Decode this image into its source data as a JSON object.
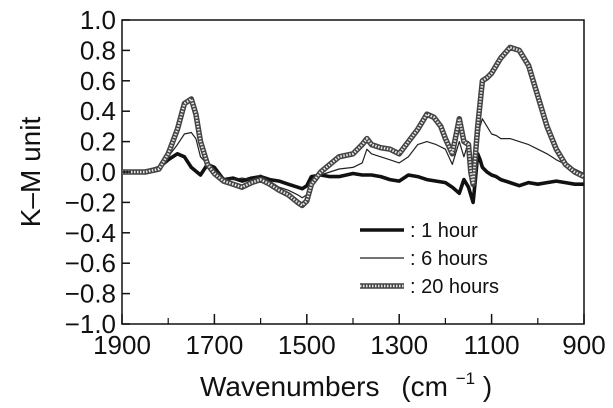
{
  "chart_data": {
    "type": "line",
    "xlabel": "Wavenumbers",
    "xlabel_unit_base": "(cm",
    "xlabel_unit_sup": "−1",
    "xlabel_unit_close": ")",
    "ylabel": "K–M unit",
    "xlim": [
      1900,
      900
    ],
    "ylim": [
      -1.0,
      1.0
    ],
    "x_ticks": [
      1900,
      1700,
      1500,
      1300,
      1100,
      900
    ],
    "x_tick_labels": [
      "1900",
      "1700",
      "1500",
      "1300",
      "1100",
      "900"
    ],
    "y_ticks": [
      1.0,
      0.8,
      0.6,
      0.4,
      0.2,
      0.0,
      -0.2,
      -0.4,
      -0.6,
      -0.8,
      -1.0
    ],
    "y_tick_labels": [
      "1.0",
      "0.8",
      "0.6",
      "0.4",
      "0.2",
      "0.0",
      "−0.2",
      "−0.4",
      "−0.6",
      "−0.8",
      "−1.0"
    ],
    "grid": false,
    "legend_position": "lower-right",
    "series": [
      {
        "name": ": 1 hour",
        "style": "thick",
        "color": "#111111",
        "x": [
          1900,
          1850,
          1820,
          1800,
          1780,
          1765,
          1750,
          1730,
          1715,
          1700,
          1680,
          1660,
          1640,
          1620,
          1600,
          1580,
          1560,
          1540,
          1520,
          1510,
          1500,
          1490,
          1470,
          1450,
          1430,
          1400,
          1380,
          1360,
          1340,
          1320,
          1300,
          1280,
          1260,
          1240,
          1220,
          1200,
          1185,
          1170,
          1160,
          1150,
          1145,
          1140,
          1135,
          1130,
          1125,
          1120,
          1110,
          1100,
          1090,
          1080,
          1060,
          1040,
          1020,
          1000,
          980,
          960,
          940,
          920,
          900
        ],
        "y": [
          0.0,
          0.0,
          0.03,
          0.08,
          0.12,
          0.1,
          0.03,
          -0.02,
          0.05,
          0.03,
          -0.05,
          -0.04,
          -0.06,
          -0.04,
          -0.03,
          -0.05,
          -0.06,
          -0.08,
          -0.1,
          -0.11,
          -0.09,
          -0.03,
          -0.02,
          -0.03,
          -0.03,
          -0.01,
          -0.02,
          -0.02,
          -0.03,
          -0.05,
          -0.06,
          -0.02,
          -0.03,
          -0.05,
          -0.06,
          -0.07,
          -0.1,
          -0.14,
          -0.05,
          -0.1,
          -0.15,
          -0.2,
          -0.05,
          0.12,
          0.08,
          0.03,
          0.0,
          -0.02,
          -0.03,
          -0.05,
          -0.07,
          -0.09,
          -0.07,
          -0.08,
          -0.07,
          -0.06,
          -0.07,
          -0.08,
          -0.08
        ]
      },
      {
        "name": ": 6 hours",
        "style": "thin",
        "color": "#222222",
        "x": [
          1900,
          1850,
          1820,
          1800,
          1780,
          1765,
          1750,
          1740,
          1730,
          1715,
          1700,
          1680,
          1660,
          1640,
          1620,
          1600,
          1580,
          1560,
          1540,
          1520,
          1510,
          1500,
          1490,
          1470,
          1450,
          1430,
          1400,
          1380,
          1370,
          1360,
          1340,
          1320,
          1300,
          1280,
          1260,
          1240,
          1220,
          1200,
          1185,
          1170,
          1160,
          1150,
          1145,
          1140,
          1130,
          1125,
          1120,
          1110,
          1100,
          1090,
          1080,
          1060,
          1040,
          1020,
          1000,
          980,
          960,
          940,
          920,
          900
        ],
        "y": [
          0.0,
          0.0,
          0.02,
          0.1,
          0.18,
          0.25,
          0.26,
          0.22,
          0.1,
          0.05,
          0.02,
          -0.04,
          -0.05,
          -0.04,
          -0.05,
          -0.02,
          -0.06,
          -0.1,
          -0.12,
          -0.15,
          -0.17,
          -0.15,
          -0.06,
          -0.02,
          0.0,
          0.02,
          0.03,
          0.06,
          0.15,
          0.12,
          0.1,
          0.08,
          0.06,
          0.1,
          0.18,
          0.2,
          0.18,
          0.15,
          0.05,
          0.2,
          0.1,
          0.2,
          -0.05,
          -0.1,
          0.15,
          0.3,
          0.35,
          0.3,
          0.25,
          0.24,
          0.22,
          0.22,
          0.2,
          0.18,
          0.15,
          0.12,
          0.08,
          0.05,
          0.02,
          -0.01
        ]
      },
      {
        "name": ": 20 hours",
        "style": "hatched",
        "color": "#555555",
        "x": [
          1900,
          1850,
          1820,
          1800,
          1780,
          1765,
          1750,
          1740,
          1730,
          1715,
          1700,
          1680,
          1660,
          1640,
          1620,
          1600,
          1580,
          1560,
          1540,
          1520,
          1510,
          1500,
          1490,
          1470,
          1450,
          1430,
          1400,
          1380,
          1370,
          1360,
          1340,
          1320,
          1300,
          1280,
          1260,
          1240,
          1225,
          1210,
          1200,
          1185,
          1170,
          1160,
          1150,
          1145,
          1140,
          1130,
          1120,
          1110,
          1100,
          1090,
          1080,
          1060,
          1040,
          1020,
          1000,
          980,
          960,
          940,
          920,
          900
        ],
        "y": [
          0.0,
          0.0,
          0.02,
          0.12,
          0.28,
          0.45,
          0.48,
          0.38,
          0.2,
          0.05,
          -0.01,
          -0.06,
          -0.08,
          -0.1,
          -0.07,
          -0.05,
          -0.08,
          -0.12,
          -0.15,
          -0.2,
          -0.22,
          -0.19,
          -0.08,
          0.0,
          0.05,
          0.1,
          0.12,
          0.18,
          0.22,
          0.18,
          0.16,
          0.15,
          0.12,
          0.2,
          0.28,
          0.38,
          0.36,
          0.3,
          0.22,
          0.12,
          0.35,
          0.2,
          0.18,
          0.0,
          -0.08,
          0.3,
          0.6,
          0.62,
          0.65,
          0.7,
          0.75,
          0.82,
          0.8,
          0.7,
          0.5,
          0.3,
          0.15,
          0.05,
          0.0,
          -0.03
        ]
      }
    ]
  }
}
